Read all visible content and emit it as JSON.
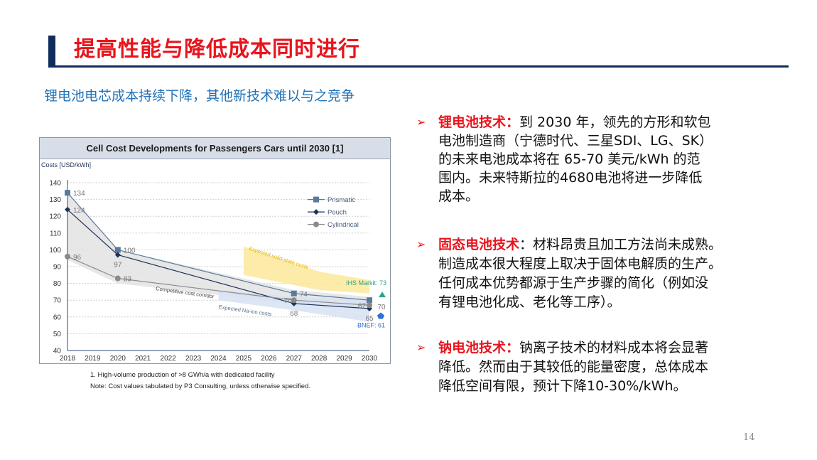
{
  "header": {
    "title": "提高性能与降低成本同时进行",
    "subtitle": "锂电池电芯成本持续下降，其他新技术难以与之竞争"
  },
  "chart_data": {
    "type": "line",
    "title": "Cell Cost Developments for Passengers Cars until 2030 [1]",
    "ylabel": "Costs [USD/kWh]",
    "xlabel": "",
    "x_ticks": [
      "2018",
      "2019",
      "2020",
      "2021",
      "2022",
      "2023",
      "2024",
      "2025",
      "2026",
      "2027",
      "2028",
      "2029",
      "2030"
    ],
    "y_ticks": [
      "40",
      "50",
      "60",
      "70",
      "80",
      "90",
      "100",
      "110",
      "120",
      "130",
      "140"
    ],
    "xlim": [
      2018,
      2030
    ],
    "ylim": [
      40,
      140
    ],
    "grid": "horizontal-dotted",
    "legend_position": "top-right",
    "x": [
      2018,
      2020,
      2027,
      2030
    ],
    "series": [
      {
        "name": "Prismatic",
        "marker": "square",
        "color": "#5a7a9c",
        "values": [
          134,
          100,
          74,
          70
        ],
        "labels": [
          "134",
          "100",
          "74",
          "70"
        ]
      },
      {
        "name": "Pouch",
        "marker": "diamond",
        "color": "#1f3358",
        "values": [
          124,
          97,
          68,
          65
        ],
        "labels": [
          "124",
          "97",
          "68",
          "65"
        ]
      },
      {
        "name": "Cylindrical",
        "marker": "circle",
        "color": "#8a8a8a",
        "values": [
          96,
          83,
          70,
          67
        ],
        "labels": [
          "96",
          "83",
          "70",
          "67"
        ]
      }
    ],
    "bands": [
      {
        "label": "Competitive cost corridor",
        "color": "#e3e3e3",
        "x": [
          2018,
          2020,
          2027,
          2030
        ],
        "upper": [
          134,
          100,
          76,
          72
        ],
        "lower": [
          94,
          80,
          68,
          64
        ]
      },
      {
        "label": "Expected solid-state costs",
        "color": "#fde79a",
        "x": [
          2025,
          2028,
          2030
        ],
        "upper": [
          102,
          87,
          82
        ],
        "lower": [
          85,
          76,
          74
        ]
      },
      {
        "label": "Expected Na-ion costs",
        "color": "#d6e2f2",
        "x": [
          2024,
          2027,
          2030
        ],
        "upper": [
          76,
          72,
          70
        ],
        "lower": [
          70,
          64,
          57
        ]
      }
    ],
    "external_points": [
      {
        "label": "IHS Markit: 73",
        "year": 2030,
        "value": 73,
        "color": "#2aa58a",
        "marker": "triangle"
      },
      {
        "label": "BNEF: 61",
        "year": 2030,
        "value": 61,
        "color": "#2f6fd6",
        "marker": "pentagon"
      }
    ],
    "footnotes": [
      "1. High-volume production of >8 GWh/a with dedicated facility",
      "Note: Cost values tabulated by P3 Consulting, unless otherwise specified."
    ]
  },
  "bullets": [
    {
      "heading": "锂电池技术：",
      "lines": [
        "到 2030 年，领先的方形和软包",
        "电池制造商（宁德时代、三星SDI、LG、SK）",
        "的未来电池成本将在 65-70 美元/kWh 的范",
        "围内。未来特斯拉的4680电池将进一步降低",
        "成本。"
      ]
    },
    {
      "heading": "固态电池技术",
      "lines": [
        "：材料昂贵且加工方法尚未成熟。",
        "制造成本很大程度上取决于固体电解质的生产。",
        "任何成本优势都源于生产步骤的简化（例如没",
        "有锂电池化成、老化等工序）。"
      ]
    },
    {
      "heading": "钠电池技术：",
      "lines": [
        "钠离子技术的材料成本将会显著",
        "降低。然而由于其较低的能量密度，总体成本",
        "降低空间有限，预计下降10-30%/kWh。"
      ]
    }
  ],
  "page_number": "14"
}
